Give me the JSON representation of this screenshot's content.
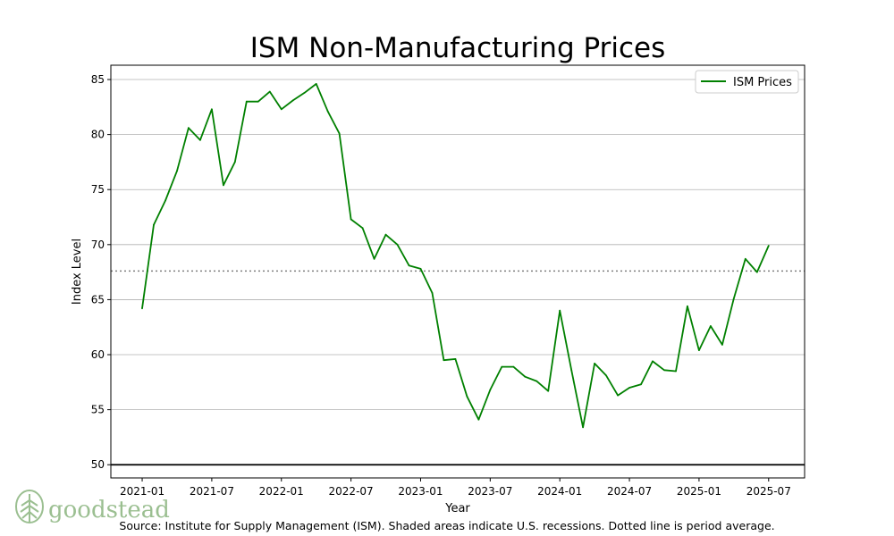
{
  "chart_data": {
    "type": "line",
    "title": "ISM Non-Manufacturing Prices",
    "xlabel": "Year",
    "ylabel": "Index Level",
    "ylim": [
      48.8,
      86.3
    ],
    "yticks": [
      50,
      55,
      60,
      65,
      70,
      75,
      80,
      85
    ],
    "xtick_labels": [
      "2021-01",
      "2021-07",
      "2022-01",
      "2022-07",
      "2023-01",
      "2023-07",
      "2024-01",
      "2024-07",
      "2025-01",
      "2025-07"
    ],
    "grid": "horizontal",
    "legend_position": "top-right",
    "average_line": 67.6,
    "reference_line": 50,
    "series": [
      {
        "name": "ISM Prices",
        "color": "#008000",
        "start": "2021-01",
        "frequency": "monthly",
        "values": [
          64.2,
          71.8,
          74.0,
          76.7,
          80.6,
          79.5,
          82.3,
          75.4,
          77.5,
          83.0,
          83.0,
          83.9,
          82.3,
          83.1,
          83.8,
          84.6,
          82.1,
          80.1,
          72.3,
          71.5,
          68.7,
          70.9,
          70.0,
          68.1,
          67.8,
          65.6,
          59.5,
          59.6,
          56.2,
          54.1,
          56.8,
          58.9,
          58.9,
          58.0,
          57.6,
          56.7,
          64.0,
          58.6,
          53.4,
          59.2,
          58.1,
          56.3,
          57.0,
          57.3,
          59.4,
          58.6,
          58.5,
          64.4,
          60.4,
          62.6,
          60.9,
          65.1,
          68.7,
          67.5,
          69.9
        ]
      }
    ]
  },
  "brand": {
    "name": "goodstead",
    "icon": "tree-leaf-icon",
    "color": "#9bbf91"
  },
  "footer": {
    "source": "Source:  Institute for Supply Management (ISM). Shaded areas indicate U.S. recessions. Dotted line is period average."
  }
}
